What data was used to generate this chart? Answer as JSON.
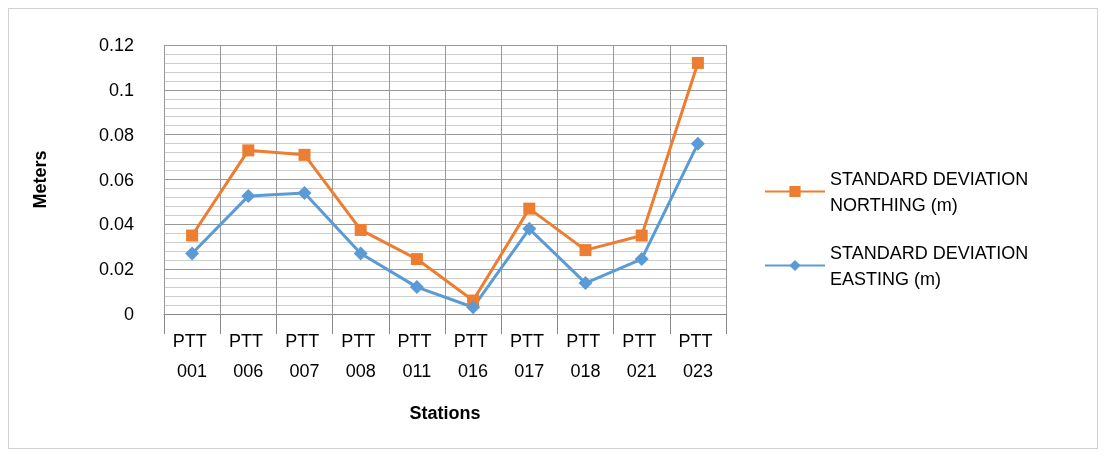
{
  "chart_data": {
    "type": "line",
    "xlabel": "Stations",
    "ylabel": "Meters",
    "categories": [
      "PTT 001",
      "PTT 006",
      "PTT 007",
      "PTT 008",
      "PTT 011",
      "PTT 016",
      "PTT 017",
      "PTT 018",
      "PTT 021",
      "PTT 023"
    ],
    "series": [
      {
        "name": "STANDARD DEVIATION NORTHING (m)",
        "color": "#ed7d31",
        "marker": "square",
        "values": [
          0.035,
          0.073,
          0.071,
          0.0375,
          0.0245,
          0.006,
          0.047,
          0.0285,
          0.035,
          0.112
        ]
      },
      {
        "name": "STANDARD DEVIATION EASTING (m)",
        "color": "#5b9bd5",
        "marker": "diamond",
        "values": [
          0.027,
          0.0526,
          0.054,
          0.027,
          0.012,
          0.003,
          0.038,
          0.0138,
          0.0245,
          0.076
        ]
      }
    ],
    "ylim": [
      0,
      0.12
    ],
    "yticks": [
      0,
      0.02,
      0.04,
      0.06,
      0.08,
      0.1,
      0.12
    ],
    "grid": true,
    "legend": "right",
    "line_style": "solid"
  }
}
